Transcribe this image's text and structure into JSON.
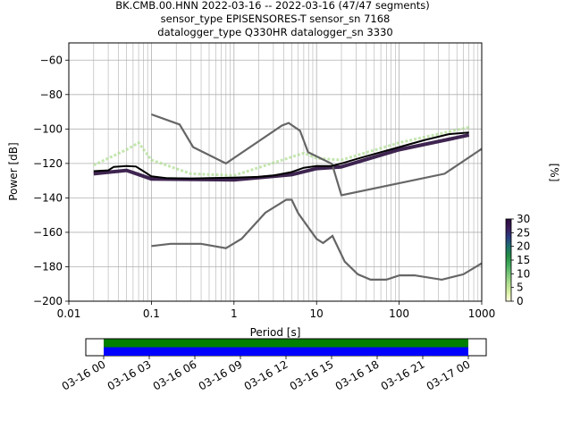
{
  "title_lines": [
    "BK.CMB.00.HNN   2022-03-16 -- 2022-03-16  (47/47 segments)",
    "sensor_type EPISENSORES-T sensor_sn 7168",
    "datalogger_type Q330HR datalogger_sn 3330"
  ],
  "chart_data": {
    "type": "line",
    "xlabel": "Period [s]",
    "ylabel": "Power [dB]",
    "xscale": "log",
    "xlim": [
      0.01,
      1000
    ],
    "ylim": [
      -200,
      -50
    ],
    "x_ticks": [
      {
        "v": 0.01,
        "label": "0.01"
      },
      {
        "v": 0.1,
        "label": "0.1"
      },
      {
        "v": 1,
        "label": "1"
      },
      {
        "v": 10,
        "label": "10"
      },
      {
        "v": 100,
        "label": "100"
      },
      {
        "v": 1000,
        "label": "1000"
      }
    ],
    "y_ticks": [
      {
        "v": -60,
        "label": "−60"
      },
      {
        "v": -80,
        "label": "−80"
      },
      {
        "v": -100,
        "label": "−100"
      },
      {
        "v": -120,
        "label": "−120"
      },
      {
        "v": -140,
        "label": "−140"
      },
      {
        "v": -160,
        "label": "−160"
      },
      {
        "v": -180,
        "label": "−180"
      },
      {
        "v": -200,
        "label": "−200"
      }
    ],
    "grid": true,
    "colorbar": {
      "label": "[%]",
      "min": 0,
      "max": 30,
      "ticks": [
        {
          "v": 0,
          "label": "0"
        },
        {
          "v": 5,
          "label": "5"
        },
        {
          "v": 10,
          "label": "10"
        },
        {
          "v": 15,
          "label": "15"
        },
        {
          "v": 20,
          "label": "20"
        },
        {
          "v": 25,
          "label": "25"
        },
        {
          "v": 30,
          "label": "30"
        }
      ],
      "colors": [
        "#ffffe0",
        "#d9f0a3",
        "#addd8e",
        "#78c679",
        "#41ab5d",
        "#238b45",
        "#1d6f6f",
        "#2a3c80",
        "#3b1a5a",
        "#2a0d3e"
      ]
    },
    "series": [
      {
        "role": "noise-model-upper",
        "color": "#666666",
        "points": [
          [
            0.1,
            -91.5
          ],
          [
            0.22,
            -97.4
          ],
          [
            0.32,
            -110.5
          ],
          [
            0.8,
            -120
          ],
          [
            3.8,
            -98
          ],
          [
            4.6,
            -96.5
          ],
          [
            6.3,
            -101
          ],
          [
            7.9,
            -113.5
          ],
          [
            15.4,
            -120.3
          ],
          [
            20,
            -138.5
          ],
          [
            354.8,
            -126
          ],
          [
            1000,
            -111.5
          ]
        ]
      },
      {
        "role": "noise-model-lower",
        "color": "#666666",
        "points": [
          [
            0.1,
            -168
          ],
          [
            0.17,
            -166.7
          ],
          [
            0.4,
            -166.7
          ],
          [
            0.8,
            -169.2
          ],
          [
            1.24,
            -163.7
          ],
          [
            2.4,
            -148.6
          ],
          [
            4.3,
            -141.1
          ],
          [
            5,
            -141.1
          ],
          [
            6,
            -149
          ],
          [
            10,
            -163.8
          ],
          [
            12,
            -166.2
          ],
          [
            15.6,
            -162.1
          ],
          [
            21.9,
            -177
          ],
          [
            31.6,
            -184.4
          ],
          [
            45,
            -187.5
          ],
          [
            70,
            -187.5
          ],
          [
            101,
            -185
          ],
          [
            154,
            -185
          ],
          [
            328,
            -187.5
          ],
          [
            600,
            -184.4
          ],
          [
            1000,
            -178
          ]
        ]
      },
      {
        "role": "mode",
        "color": "#000000",
        "points": [
          [
            0.02,
            -124.5
          ],
          [
            0.03,
            -124
          ],
          [
            0.035,
            -122
          ],
          [
            0.05,
            -121.5
          ],
          [
            0.065,
            -121.8
          ],
          [
            0.08,
            -124.5
          ],
          [
            0.1,
            -127.5
          ],
          [
            0.15,
            -128.5
          ],
          [
            0.3,
            -128.8
          ],
          [
            0.5,
            -128.5
          ],
          [
            1,
            -128.2
          ],
          [
            2,
            -127.8
          ],
          [
            3,
            -127
          ],
          [
            5,
            -125
          ],
          [
            7,
            -122.5
          ],
          [
            10,
            -121.5
          ],
          [
            15,
            -121.5
          ],
          [
            20,
            -120
          ],
          [
            30,
            -117.5
          ],
          [
            50,
            -114.5
          ],
          [
            100,
            -110.5
          ],
          [
            200,
            -106.5
          ],
          [
            400,
            -103
          ],
          [
            700,
            -102
          ]
        ]
      },
      {
        "role": "psd-histogram-band",
        "color": "#2a0d3e",
        "points": [
          [
            0.02,
            -126
          ],
          [
            0.05,
            -124
          ],
          [
            0.1,
            -129
          ],
          [
            1,
            -129.5
          ],
          [
            5,
            -126.5
          ],
          [
            10,
            -123
          ],
          [
            20,
            -122
          ],
          [
            100,
            -112
          ],
          [
            700,
            -103.5
          ]
        ]
      },
      {
        "role": "psd-histogram-spread",
        "color": "#addd8e",
        "points": [
          [
            0.02,
            -121
          ],
          [
            0.05,
            -112
          ],
          [
            0.07,
            -108
          ],
          [
            0.1,
            -118
          ],
          [
            0.3,
            -126
          ],
          [
            1,
            -127
          ],
          [
            7,
            -114
          ],
          [
            10,
            -117
          ],
          [
            20,
            -118
          ],
          [
            100,
            -108
          ],
          [
            700,
            -99
          ]
        ]
      }
    ]
  },
  "time_axis": {
    "ticks": [
      {
        "f": 0.0,
        "label": "03-16 00"
      },
      {
        "f": 0.125,
        "label": "03-16 03"
      },
      {
        "f": 0.25,
        "label": "03-16 06"
      },
      {
        "f": 0.375,
        "label": "03-16 09"
      },
      {
        "f": 0.5,
        "label": "03-16 12"
      },
      {
        "f": 0.625,
        "label": "03-16 15"
      },
      {
        "f": 0.75,
        "label": "03-16 18"
      },
      {
        "f": 0.875,
        "label": "03-16 21"
      },
      {
        "f": 1.0,
        "label": "03-17 00"
      }
    ],
    "coverage": [
      {
        "color": "#008000",
        "start": 0.0,
        "end": 1.0
      },
      {
        "color": "#0000ff",
        "start": 0.0,
        "end": 1.0
      }
    ]
  }
}
